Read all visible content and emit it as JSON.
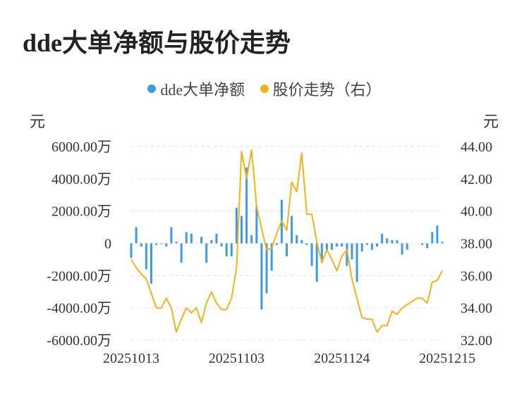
{
  "title": "dde大单净额与股价走势",
  "units": {
    "left": "元",
    "right": "元"
  },
  "colors": {
    "bars": "#3a9ce6",
    "line": "#f3b21b",
    "grid": "#e3e3e3"
  },
  "chart_data": {
    "type": "bar+line",
    "legend": [
      "dde大单净额",
      "股价走势（右）"
    ],
    "legend_placement": "top-center",
    "grid": true,
    "yleft": {
      "ylim": [
        -6000,
        6000
      ],
      "ticks": [
        "6000.00万",
        "4000.00万",
        "2000.00万",
        "0",
        "-2000.00万",
        "-4000.00万",
        "-6000.00万"
      ],
      "tick_values": [
        6000,
        4000,
        2000,
        0,
        -2000,
        -4000,
        -6000
      ]
    },
    "yright": {
      "ylim": [
        32,
        44
      ],
      "ticks": [
        "44.00",
        "42.00",
        "40.00",
        "38.00",
        "36.00",
        "34.00",
        "32.00"
      ],
      "tick_values": [
        44,
        42,
        40,
        38,
        36,
        34,
        32
      ]
    },
    "xticks": [
      "20251013",
      "20251103",
      "20251124",
      "20251215"
    ],
    "xtick_index": [
      0,
      21,
      42,
      63
    ],
    "series": [
      {
        "name": "dde大单净额",
        "type": "bar",
        "axis": "left",
        "values": [
          -900,
          1000,
          -200,
          -1600,
          -2500,
          -100,
          -50,
          -200,
          1000,
          100,
          -1200,
          700,
          600,
          0,
          400,
          -1200,
          200,
          600,
          -200,
          -800,
          -800,
          2200,
          1700,
          4700,
          500,
          2300,
          -4100,
          -3100,
          -1700,
          -100,
          2700,
          -800,
          1700,
          500,
          200,
          -100,
          -1400,
          -2400,
          -1000,
          -500,
          -400,
          -200,
          -200,
          -1400,
          -1000,
          -2400,
          -500,
          -100,
          -400,
          -200,
          600,
          300,
          200,
          200,
          -700,
          -400,
          0,
          0,
          -100,
          -300,
          700,
          1100,
          100
        ],
        "unit": "万元"
      },
      {
        "name": "股价走势（右）",
        "type": "line",
        "axis": "right",
        "values": [
          37.0,
          36.5,
          36.1,
          35.8,
          34.9,
          34.0,
          34.0,
          34.6,
          34.0,
          32.5,
          33.3,
          34.0,
          33.7,
          34.0,
          33.1,
          34.3,
          35.0,
          34.3,
          33.9,
          33.9,
          34.6,
          36.5,
          43.7,
          42.0,
          43.8,
          40.3,
          38.9,
          37.6,
          37.7,
          38.6,
          39.4,
          38.8,
          41.8,
          41.2,
          43.6,
          39.8,
          39.8,
          38.1,
          36.8,
          37.6,
          37.0,
          36.3,
          37.2,
          37.6,
          35.8,
          34.6,
          33.4,
          33.3,
          33.3,
          32.5,
          32.9,
          32.9,
          33.8,
          33.6,
          34.0,
          34.2,
          34.4,
          34.6,
          34.6,
          34.3,
          35.6,
          35.7,
          36.3
        ]
      }
    ]
  }
}
